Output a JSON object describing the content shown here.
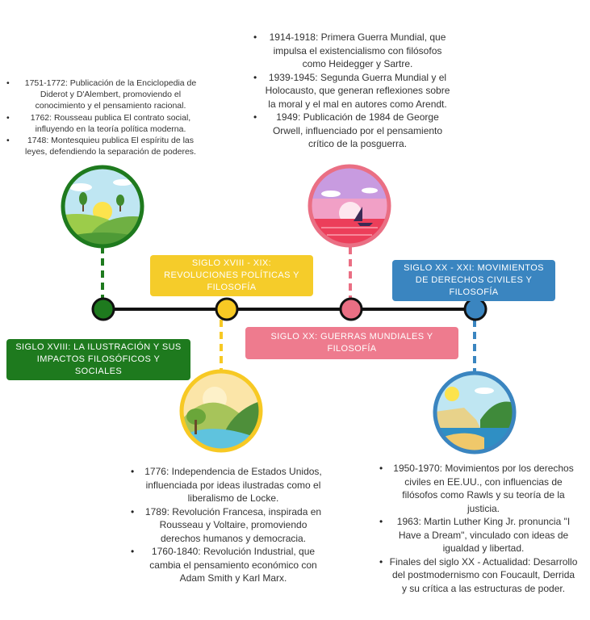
{
  "colors": {
    "green": "#1e7a1e",
    "yellow": "#f7c924",
    "pink": "#ea6f84",
    "blue": "#3a85c0",
    "line": "#111111"
  },
  "periods": [
    {
      "label": "SIGLO XVIII: LA ILUSTRACIÓN Y SUS IMPACTOS FILOSÓFICOS Y SOCIALES",
      "notes": [
        "1751-1772: Publicación de la Enciclopedia de Diderot y D'Alembert, promoviendo el conocimiento y el pensamiento racional.",
        "1762: Rousseau publica El contrato social, influyendo en la teoría política moderna.",
        "1748: Montesquieu publica El espíritu de las leyes, defendiendo la separación de poderes."
      ]
    },
    {
      "label": "SIGLO XVIII - XIX: REVOLUCIONES POLÍTICAS Y FILOSOFÍA",
      "notes": [
        "1776: Independencia de Estados Unidos, influenciada por ideas ilustradas como el liberalismo de Locke.",
        "1789: Revolución Francesa, inspirada en Rousseau y Voltaire, promoviendo derechos humanos y democracia.",
        "1760-1840: Revolución Industrial, que cambia el pensamiento económico con Adam Smith y Karl Marx."
      ]
    },
    {
      "label": "SIGLO XX: GUERRAS MUNDIALES Y FILOSOFÍA",
      "notes": [
        "1914-1918: Primera Guerra Mundial, que impulsa el existencialismo con filósofos como Heidegger y Sartre.",
        "1939-1945: Segunda Guerra Mundial y el Holocausto, que generan reflexiones sobre la moral y el mal en autores como Arendt.",
        "1949: Publicación de 1984 de George Orwell, influenciado por el pensamiento crítico de la posguerra."
      ]
    },
    {
      "label": "SIGLO XX - XXI: MOVIMIENTOS DE DERECHOS CIVILES Y FILOSOFÍA",
      "notes": [
        "1950-1970: Movimientos por los derechos civiles en EE.UU., con influencias de filósofos como Rawls y su teoría de la justicia.",
        "1963: Martin Luther King Jr. pronuncia \"I Have a Dream\", vinculado con ideas de igualdad y libertad.",
        "Finales del siglo XX - Actualidad: Desarrollo del postmodernismo con Foucault, Derrida y su crítica a las estructuras de poder."
      ]
    }
  ]
}
